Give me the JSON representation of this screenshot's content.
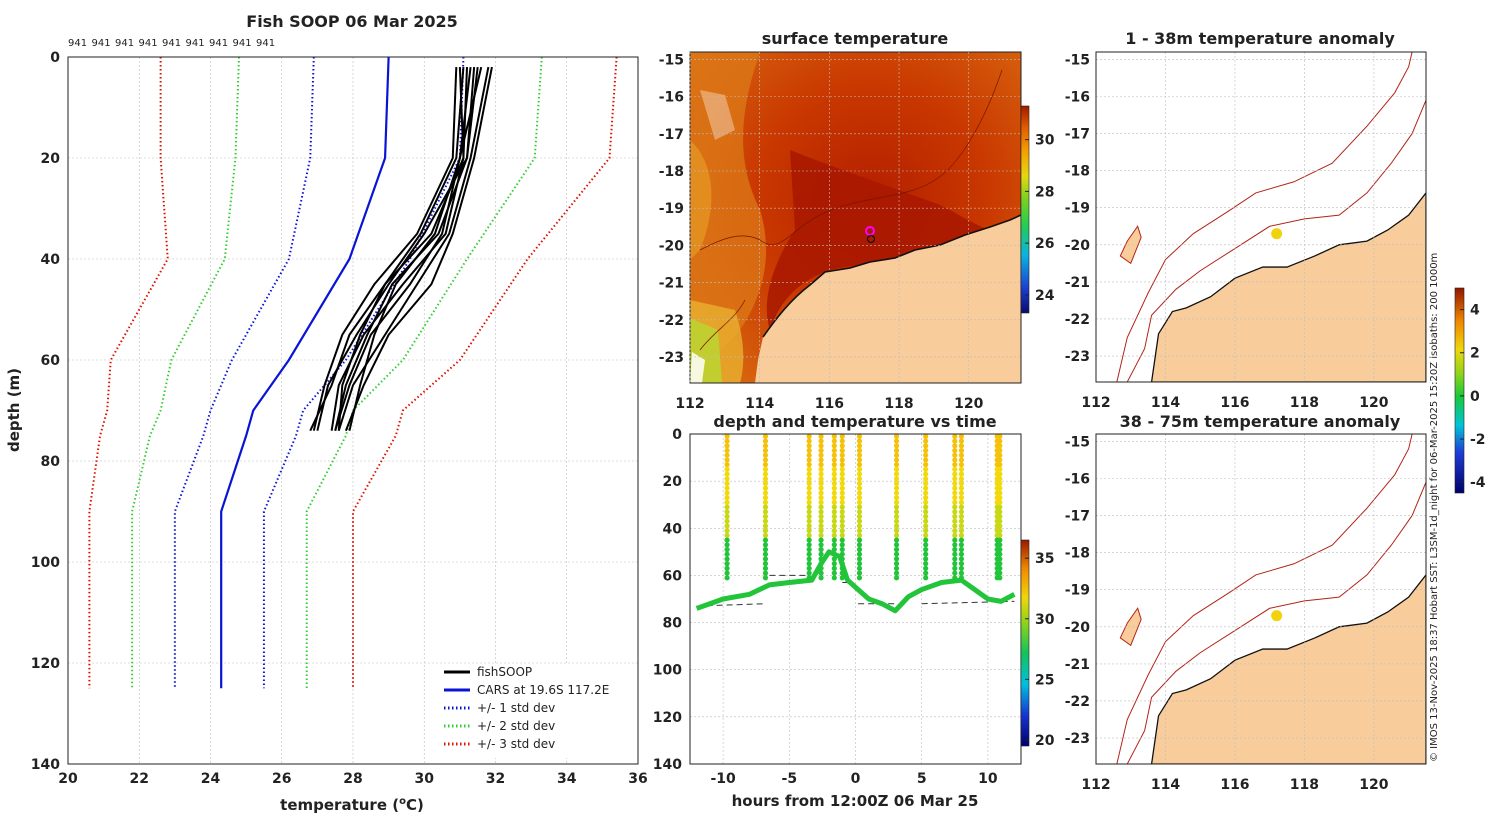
{
  "credit": "© IMOS 13-Nov-2025 18:37 Hobart SST: L3SM-1d_night for 06-Mar-2025 15:20Z isobaths: 200  1000m",
  "colors": {
    "soop": "#000000",
    "cars": "#0a14d6",
    "std1": "#0a14d6",
    "std2": "#33cc33",
    "std3": "#dd1100",
    "land": "#f9cc9b",
    "coast": "#b22418",
    "marker": "#ff00ff"
  },
  "chart_data": [
    {
      "id": "profile",
      "type": "line",
      "title": "Fish SOOP 06 Mar 2025",
      "xlabel": "temperature (",
      "xlabel_sup": "o",
      "xlabel_tail": "C)",
      "ylabel": "depth (m)",
      "xlim": [
        20,
        36
      ],
      "ylim": [
        0,
        140
      ],
      "xticks": [
        "20",
        "22",
        "24",
        "26",
        "28",
        "30",
        "32",
        "34",
        "36"
      ],
      "yticks": [
        "0",
        "20",
        "40",
        "60",
        "80",
        "100",
        "120",
        "140"
      ],
      "top_labels": [
        "941",
        "941",
        "941",
        "941",
        "941",
        "941",
        "941",
        "941",
        "941"
      ],
      "legend": [
        {
          "label": "fishSOOP",
          "style": "solid",
          "color": "#000000"
        },
        {
          "label": "CARS at 19.6S 117.2E",
          "style": "solid",
          "color": "#0a14d6"
        },
        {
          "label": "+/- 1 std dev",
          "style": "dotted",
          "color": "#0a14d6"
        },
        {
          "label": "+/- 2 std dev",
          "style": "dotted",
          "color": "#33cc33"
        },
        {
          "label": "+/- 3 std dev",
          "style": "dotted",
          "color": "#dd1100"
        }
      ],
      "depths": [
        0,
        20,
        40,
        60,
        70,
        75,
        90,
        125
      ],
      "cars": [
        29.0,
        28.9,
        27.9,
        26.2,
        25.2,
        25.0,
        24.3,
        24.3
      ],
      "std": {
        "plus1": [
          31.1,
          31.0,
          29.6,
          27.8,
          26.6,
          26.4,
          25.5,
          25.5
        ],
        "minus1": [
          26.9,
          26.8,
          26.2,
          24.6,
          24.0,
          23.8,
          23.0,
          23.0
        ],
        "plus2": [
          33.3,
          33.1,
          31.2,
          29.4,
          28.0,
          27.8,
          26.7,
          26.7
        ],
        "minus2": [
          24.8,
          24.7,
          24.4,
          22.9,
          22.6,
          22.3,
          21.8,
          21.8
        ],
        "plus3": [
          35.4,
          35.2,
          32.9,
          31.0,
          29.4,
          29.2,
          28.0,
          28.0
        ],
        "minus3": [
          22.6,
          22.6,
          22.8,
          21.2,
          21.1,
          20.9,
          20.6,
          20.6
        ]
      },
      "soop_profiles": [
        {
          "t": [
            31.0,
            31.1,
            30.2,
            28.9,
            28.2,
            27.7,
            27.6
          ],
          "d": [
            2,
            20,
            35,
            45,
            55,
            65,
            74
          ]
        },
        {
          "t": [
            31.3,
            31.0,
            30.5,
            29.6,
            28.5,
            27.9,
            27.5
          ],
          "d": [
            2,
            20,
            35,
            45,
            55,
            65,
            74
          ]
        },
        {
          "t": [
            31.5,
            31.2,
            30.0,
            29.0,
            28.1,
            27.3,
            27.0
          ],
          "d": [
            2,
            20,
            35,
            45,
            55,
            65,
            74
          ]
        },
        {
          "t": [
            31.8,
            31.3,
            30.7,
            29.8,
            28.9,
            28.0,
            27.6
          ],
          "d": [
            2,
            20,
            35,
            45,
            55,
            65,
            74
          ]
        },
        {
          "t": [
            30.9,
            30.8,
            29.8,
            28.6,
            27.7,
            27.2,
            26.9
          ],
          "d": [
            2,
            20,
            35,
            45,
            55,
            65,
            74
          ]
        },
        {
          "t": [
            31.2,
            31.1,
            30.6,
            29.4,
            28.3,
            27.6,
            27.4
          ],
          "d": [
            2,
            20,
            35,
            45,
            55,
            65,
            74
          ]
        },
        {
          "t": [
            31.6,
            31.0,
            30.3,
            29.2,
            28.6,
            28.2,
            27.9
          ],
          "d": [
            2,
            20,
            35,
            45,
            55,
            65,
            74
          ]
        },
        {
          "t": [
            31.9,
            31.4,
            30.8,
            30.2,
            29.0,
            28.3,
            27.8
          ],
          "d": [
            2,
            20,
            35,
            45,
            55,
            65,
            74
          ]
        },
        {
          "t": [
            31.1,
            30.9,
            29.9,
            28.9,
            27.9,
            27.4,
            26.8
          ],
          "d": [
            2,
            20,
            35,
            45,
            55,
            65,
            74
          ]
        },
        {
          "t": [
            31.4,
            31.2,
            30.4,
            29.1,
            28.4,
            27.8,
            27.5
          ],
          "d": [
            2,
            20,
            35,
            45,
            55,
            65,
            74
          ]
        }
      ]
    },
    {
      "id": "sst",
      "type": "heatmap",
      "title": "surface temperature",
      "xticks": [
        "112",
        "114",
        "116",
        "118",
        "120"
      ],
      "yticks": [
        "-15",
        "-16",
        "-17",
        "-18",
        "-19",
        "-20",
        "-21",
        "-22",
        "-23"
      ],
      "xlim": [
        112,
        121.5
      ],
      "ylim": [
        -23.7,
        -14.8
      ],
      "colorbar_ticks": [
        "24",
        "26",
        "28",
        "30"
      ],
      "colorbar_range": [
        23.3,
        31.3
      ],
      "marker": {
        "lon": 117.2,
        "lat": -19.6
      }
    },
    {
      "id": "depthtime",
      "type": "scatter",
      "title": "depth and temperature vs time",
      "xlabel": "hours from 12:00Z 06 Mar 25",
      "xlim": [
        -12.5,
        12.5
      ],
      "ylim": [
        0,
        140
      ],
      "xticks": [
        "-10",
        "-5",
        "0",
        "5",
        "10"
      ],
      "xtick_values": [
        -10,
        -5,
        0,
        5,
        10
      ],
      "yticks": [
        "0",
        "20",
        "40",
        "60",
        "80",
        "100",
        "120",
        "140"
      ],
      "colorbar_ticks": [
        "20",
        "25",
        "30",
        "35"
      ],
      "colorbar_range": [
        19.5,
        36.5
      ],
      "casts": [
        -9.7,
        -6.8,
        -3.5,
        -2.6,
        -1.6,
        -1.0,
        0.3,
        3.1,
        5.3,
        7.5,
        8.0,
        10.7,
        10.9
      ],
      "bottom": [
        [
          -12.0,
          74
        ],
        [
          -11.0,
          72
        ],
        [
          -10.0,
          70
        ],
        [
          -8.0,
          68
        ],
        [
          -6.5,
          64
        ],
        [
          -5.0,
          63
        ],
        [
          -3.3,
          62
        ],
        [
          -2.6,
          55
        ],
        [
          -2.0,
          50
        ],
        [
          -1.2,
          52
        ],
        [
          -0.6,
          62
        ],
        [
          0.2,
          66
        ],
        [
          1.0,
          70
        ],
        [
          2.0,
          72
        ],
        [
          3.0,
          75
        ],
        [
          4.0,
          69
        ],
        [
          5.0,
          66
        ],
        [
          6.5,
          63
        ],
        [
          8.0,
          62
        ],
        [
          9.0,
          66
        ],
        [
          10.0,
          70
        ],
        [
          11.0,
          71
        ],
        [
          12.0,
          68
        ]
      ],
      "bottom_ref": [
        [
          [
            -12.0,
            73
          ],
          [
            -6.8,
            72
          ]
        ],
        [
          [
            -6.5,
            60
          ],
          [
            -3.5,
            60
          ]
        ],
        [
          [
            -1.0,
            63
          ],
          [
            -0.2,
            63
          ]
        ],
        [
          [
            0.2,
            72
          ],
          [
            3.0,
            72
          ]
        ],
        [
          [
            5.0,
            72
          ],
          [
            12.0,
            71
          ]
        ]
      ]
    },
    {
      "id": "anom1",
      "type": "heatmap",
      "title": "1 - 38m temperature anomaly",
      "xticks": [
        "112",
        "114",
        "116",
        "118",
        "120"
      ],
      "yticks": [
        "-15",
        "-16",
        "-17",
        "-18",
        "-19",
        "-20",
        "-21",
        "-22",
        "-23"
      ],
      "xlim": [
        112,
        121.5
      ],
      "ylim": [
        -23.7,
        -14.8
      ],
      "marker": {
        "lon": 117.2,
        "lat": -19.7
      },
      "colorbar_ticks": [
        "-4",
        "-2",
        "0",
        "2",
        "4"
      ],
      "colorbar_range": [
        -4.5,
        5.0
      ]
    },
    {
      "id": "anom2",
      "type": "heatmap",
      "title": "38 - 75m temperature anomaly",
      "xticks": [
        "112",
        "114",
        "116",
        "118",
        "120"
      ],
      "yticks": [
        "-15",
        "-16",
        "-17",
        "-18",
        "-19",
        "-20",
        "-21",
        "-22",
        "-23"
      ],
      "xlim": [
        112,
        121.5
      ],
      "ylim": [
        -23.7,
        -14.8
      ],
      "marker": {
        "lon": 117.2,
        "lat": -19.7
      }
    }
  ]
}
